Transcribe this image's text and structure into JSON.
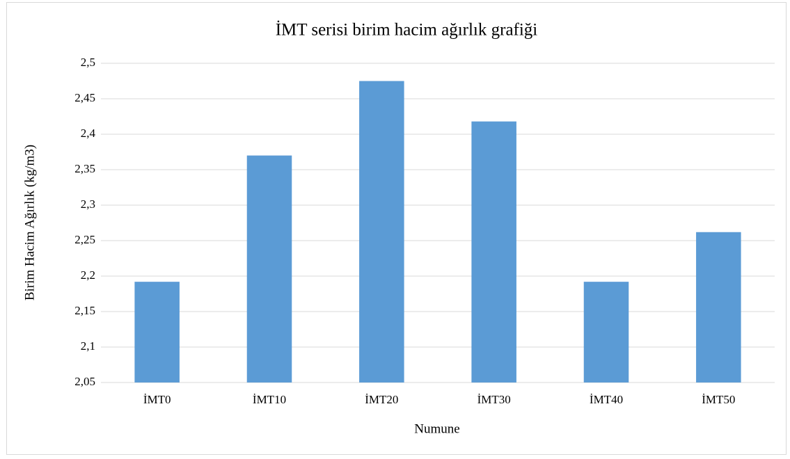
{
  "chart_data": {
    "type": "bar",
    "title": "İMT serisi birim hacim ağırlık grafiği",
    "x_label": "Numune",
    "y_label": "Birim Hacim Ağırlık (kg/m3)",
    "categories": [
      "İMT0",
      "İMT10",
      "İMT20",
      "İMT30",
      "İMT40",
      "İMT50"
    ],
    "values": [
      2.192,
      2.37,
      2.475,
      2.418,
      2.192,
      2.262
    ],
    "color": "#5b9bd5",
    "ylim": [
      2.05,
      2.5
    ],
    "yticks": [
      {
        "value": 2.05,
        "label": "2,05"
      },
      {
        "value": 2.1,
        "label": "2,1"
      },
      {
        "value": 2.15,
        "label": "2,15"
      },
      {
        "value": 2.2,
        "label": "2,2"
      },
      {
        "value": 2.25,
        "label": "2,25"
      },
      {
        "value": 2.3,
        "label": "2,3"
      },
      {
        "value": 2.35,
        "label": "2,35"
      },
      {
        "value": 2.4,
        "label": "2,4"
      },
      {
        "value": 2.45,
        "label": "2,45"
      },
      {
        "value": 2.5,
        "label": "2,5"
      }
    ],
    "grid": true
  }
}
